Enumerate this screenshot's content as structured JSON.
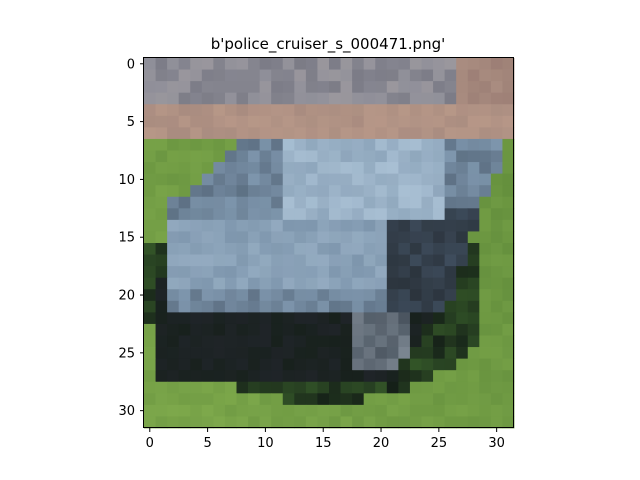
{
  "figure": {
    "title": "b'police_cruiser_s_000471.png'"
  },
  "image": {
    "description_name": "low-resolution photo of a silver-blue police cruiser car on grass",
    "pixel_grid": [
      32,
      32
    ],
    "palette": {
      "grass_light": "#7faa4c",
      "grass_mid": "#5f8a3a",
      "grass_dark": "#3f6a2e",
      "road_top": "#a98c80",
      "gray_bg": "#8f8f99",
      "car_body": "#7e96ad",
      "car_light": "#a8bfd3",
      "car_dark": "#3e4c5c",
      "tire": "#1f2428",
      "shadow": "#152018"
    }
  },
  "axes": {
    "x_ticks": [
      "0",
      "5",
      "10",
      "15",
      "20",
      "25",
      "30"
    ],
    "y_ticks": [
      "0",
      "5",
      "10",
      "15",
      "20",
      "25",
      "30"
    ],
    "x_range": [
      -0.5,
      31.5
    ],
    "y_range": [
      31.5,
      -0.5
    ]
  }
}
